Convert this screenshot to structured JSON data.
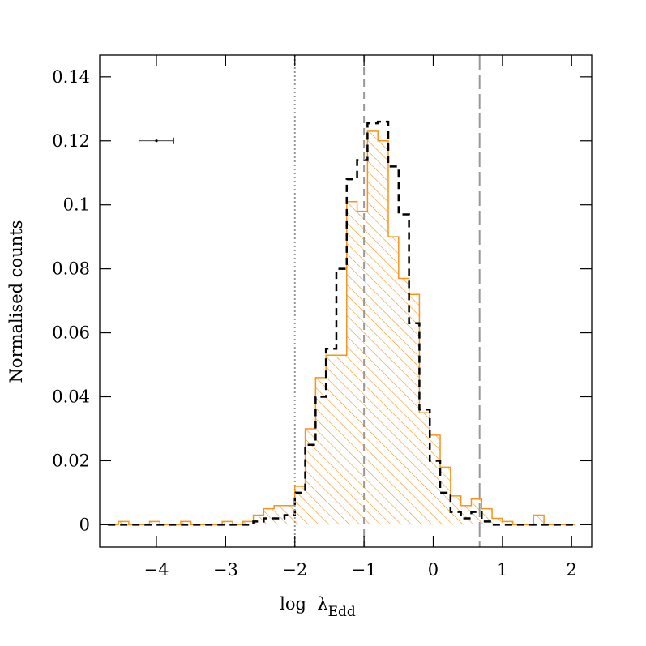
{
  "chart_data": {
    "type": "histogram",
    "xlabel": "log  λ",
    "xlabel_sub": "Edd",
    "ylabel": "Normalised counts",
    "bins": [
      -4.7,
      -4.55,
      -4.4,
      -4.25,
      -4.1,
      -3.95,
      -3.8,
      -3.65,
      -3.5,
      -3.35,
      -3.2,
      -3.05,
      -2.9,
      -2.75,
      -2.6,
      -2.45,
      -2.3,
      -2.15,
      -2.0,
      -1.85,
      -1.7,
      -1.55,
      -1.4,
      -1.25,
      -1.1,
      -0.95,
      -0.8,
      -0.65,
      -0.5,
      -0.35,
      -0.2,
      -0.05,
      0.1,
      0.25,
      0.4,
      0.55,
      0.7,
      0.85,
      1.0,
      1.15,
      1.3,
      1.45,
      1.6,
      1.75,
      1.9,
      2.05
    ],
    "series": [
      {
        "color": "#f7941d",
        "style": "hatched",
        "values": [
          0,
          0.001,
          0,
          0,
          0.001,
          0,
          0,
          0.001,
          0,
          0,
          0,
          0.001,
          0,
          0.001,
          0.003,
          0.005,
          0.006,
          0.006,
          0.012,
          0.03,
          0.046,
          0.053,
          0.053,
          0.101,
          0.098,
          0.123,
          0.12,
          0.09,
          0.077,
          0.072,
          0.035,
          0.028,
          0.018,
          0.009,
          0.006,
          0.008,
          0.005,
          0.002,
          0.001,
          0,
          0,
          0.003,
          0,
          0,
          0
        ]
      },
      {
        "color": "#000000",
        "style": "dashed",
        "values": [
          0,
          0,
          0,
          0,
          0,
          0,
          0,
          0,
          0,
          0,
          0,
          0,
          0,
          0,
          0.001,
          0.002,
          0.002,
          0.003,
          0.01,
          0.025,
          0.04,
          0.055,
          0.08,
          0.108,
          0.114,
          0.1255,
          0.126,
          0.112,
          0.097,
          0.063,
          0.036,
          0.02,
          0.01,
          0.004,
          0.002,
          0.004,
          0.001,
          0,
          0,
          0,
          0,
          0,
          0,
          0,
          0
        ]
      }
    ],
    "vlines": [
      {
        "value": -2,
        "style": "dotted",
        "color": "#999999"
      },
      {
        "value": -1,
        "style": "dashed",
        "color": "#999999"
      },
      {
        "value": 0.67,
        "style": "longdash",
        "color": "#999999"
      }
    ],
    "error_bar": {
      "x": -4,
      "y": 0.12,
      "xerr": 0.25
    },
    "xlim": [
      -4.82,
      2.29
    ],
    "ylim": [
      -0.007,
      0.1468
    ],
    "xticks": [
      {
        "value": -4,
        "label": "−4"
      },
      {
        "value": -3,
        "label": "−3"
      },
      {
        "value": -2,
        "label": "−2"
      },
      {
        "value": -1,
        "label": "−1"
      },
      0,
      1,
      2
    ],
    "yticks": [
      0,
      0.02,
      0.04,
      0.06,
      0.08,
      0.1,
      0.12,
      0.14
    ]
  }
}
